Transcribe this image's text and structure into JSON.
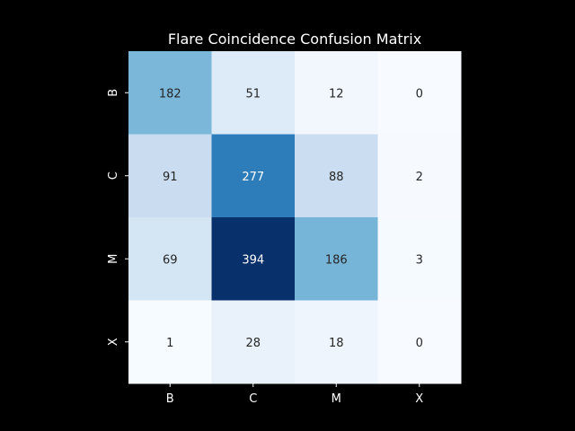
{
  "chart_data": {
    "type": "heatmap",
    "title": "Flare Coincidence Confusion Matrix",
    "xlabel": "",
    "ylabel": "",
    "x_categories": [
      "B",
      "C",
      "M",
      "X"
    ],
    "y_categories": [
      "B",
      "C",
      "M",
      "X"
    ],
    "values": [
      [
        182,
        51,
        12,
        0
      ],
      [
        91,
        277,
        88,
        2
      ],
      [
        69,
        394,
        186,
        3
      ],
      [
        1,
        28,
        18,
        0
      ]
    ],
    "colormap": "Blues",
    "vmin": 0,
    "vmax": 394,
    "colorbar": false,
    "grid": false
  }
}
